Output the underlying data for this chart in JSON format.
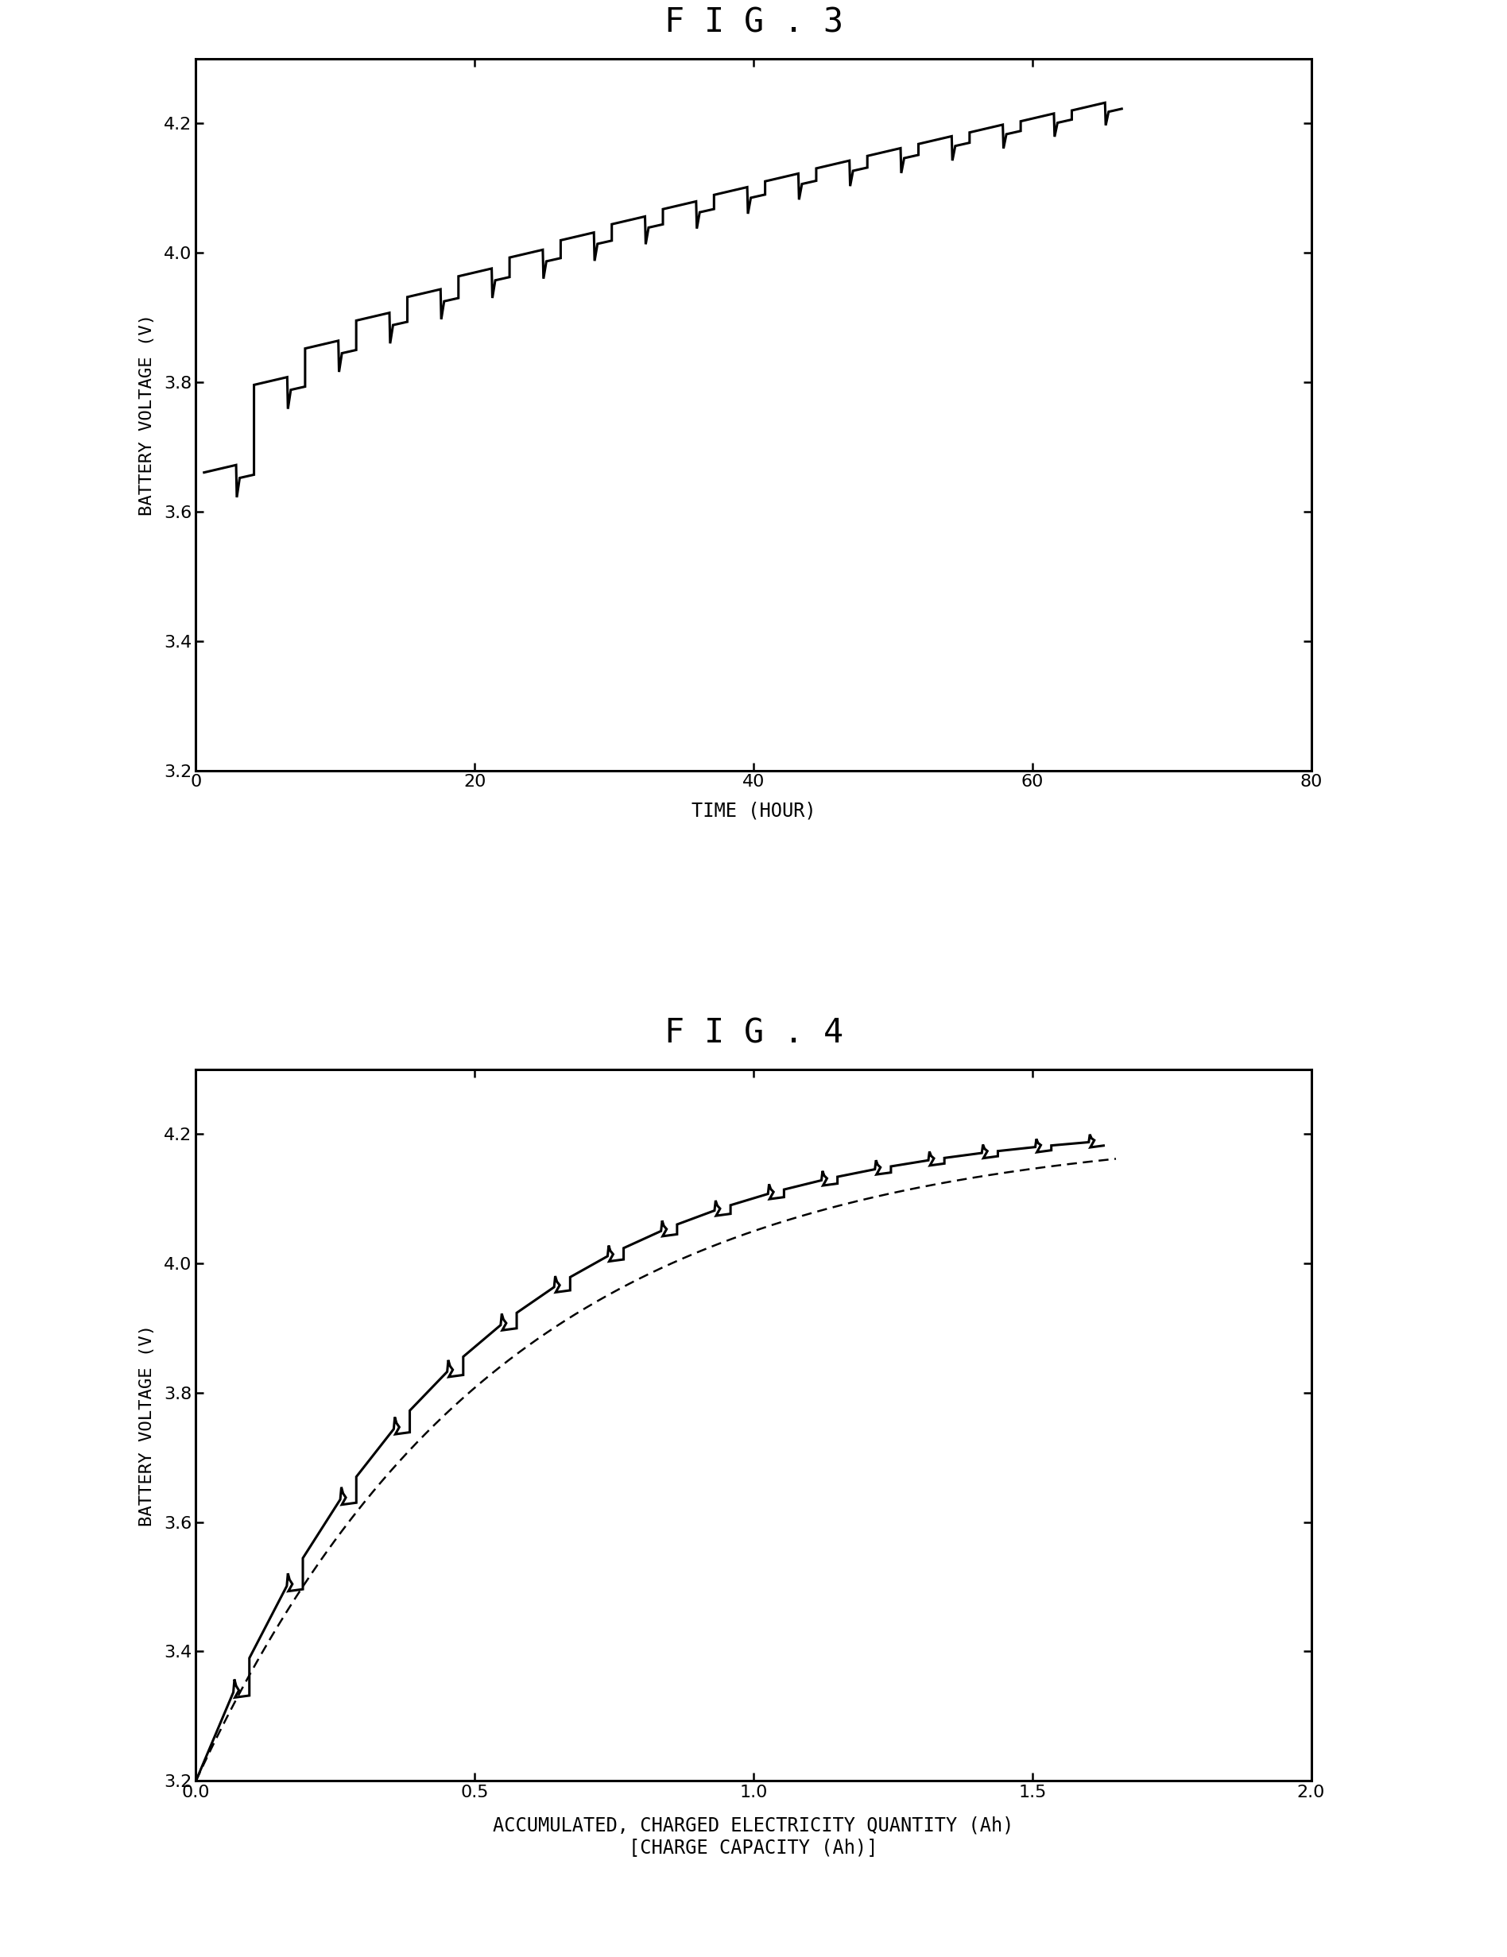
{
  "fig3_title": "F I G . 3",
  "fig4_title": "F I G . 4",
  "fig3_xlabel": "TIME (HOUR)",
  "fig3_ylabel": "BATTERY VOLTAGE (V)",
  "fig4_xlabel": "ACCUMULATED, CHARGED ELECTRICITY QUANTITY (Ah)\n[CHARGE CAPACITY (Ah)]",
  "fig4_ylabel": "BATTERY VOLTAGE (V)",
  "fig3_xlim": [
    0,
    80
  ],
  "fig3_ylim": [
    3.2,
    4.3
  ],
  "fig3_xticks": [
    0,
    20,
    40,
    60,
    80
  ],
  "fig3_yticks": [
    3.2,
    3.4,
    3.6,
    3.8,
    4.0,
    4.2
  ],
  "fig4_xlim": [
    0.0,
    2.0
  ],
  "fig4_ylim": [
    3.2,
    4.3
  ],
  "fig4_xticks": [
    0.0,
    0.5,
    1.0,
    1.5,
    2.0
  ],
  "fig4_yticks": [
    3.2,
    3.4,
    3.6,
    3.8,
    4.0,
    4.2
  ],
  "background_color": "#ffffff",
  "line_color": "#000000",
  "title_fontsize": 30,
  "label_fontsize": 17,
  "tick_fontsize": 16
}
